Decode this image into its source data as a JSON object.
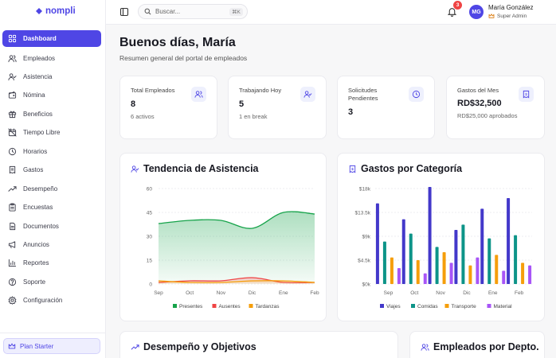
{
  "app": {
    "logo": "nompli"
  },
  "sidebar": {
    "items": [
      {
        "label": "Dashboard",
        "icon": "grid-icon"
      },
      {
        "label": "Empleados",
        "icon": "users-icon"
      },
      {
        "label": "Asistencia",
        "icon": "user-check-icon"
      },
      {
        "label": "Nómina",
        "icon": "wallet-icon"
      },
      {
        "label": "Beneficios",
        "icon": "gift-icon"
      },
      {
        "label": "Tiempo Libre",
        "icon": "calendar-off-icon"
      },
      {
        "label": "Horarios",
        "icon": "clock-icon"
      },
      {
        "label": "Gastos",
        "icon": "receipt-icon"
      },
      {
        "label": "Desempeño",
        "icon": "trending-up-icon"
      },
      {
        "label": "Encuestas",
        "icon": "clipboard-icon"
      },
      {
        "label": "Documentos",
        "icon": "file-icon"
      },
      {
        "label": "Anuncios",
        "icon": "megaphone-icon"
      },
      {
        "label": "Reportes",
        "icon": "bar-chart-icon"
      },
      {
        "label": "Soporte",
        "icon": "help-icon"
      },
      {
        "label": "Configuración",
        "icon": "gear-icon"
      }
    ],
    "plan_label": "Plan Starter"
  },
  "topbar": {
    "search_placeholder": "Buscar...",
    "search_shortcut": "⌘K",
    "notifications_count": "3",
    "avatar_initials": "MG",
    "user_name": "María González",
    "user_role": "Super Admin"
  },
  "header": {
    "greeting": "Buenos días, María",
    "subtitle": "Resumen general del portal de empleados"
  },
  "stats": [
    {
      "label": "Total Empleados",
      "value": "8",
      "sub": "6 activos",
      "icon": "users-icon"
    },
    {
      "label": "Trabajando Hoy",
      "value": "5",
      "sub": "1 en break",
      "icon": "user-check-icon"
    },
    {
      "label": "Solicitudes Pendientes",
      "value": "3",
      "sub": "",
      "icon": "clock-icon"
    },
    {
      "label": "Gastos del Mes",
      "value": "RD$32,500",
      "sub": "RD$25,000 aprobados",
      "icon": "receipt-icon"
    }
  ],
  "cards": {
    "attendance_title": "Tendencia de Asistencia",
    "expenses_title": "Gastos por Categoría",
    "performance_title": "Desempeño y Objetivos",
    "department_title": "Empleados por Depto."
  },
  "chart_data": [
    {
      "type": "area",
      "title": "Tendencia de Asistencia",
      "categories": [
        "Sep",
        "Oct",
        "Nov",
        "Dic",
        "Ene",
        "Feb"
      ],
      "yticks": [
        "0",
        "15",
        "30",
        "45",
        "60"
      ],
      "ylim": [
        0,
        60
      ],
      "series": [
        {
          "name": "Presentes",
          "color": "#16a34a",
          "values": [
            38,
            40,
            40,
            35,
            45,
            44
          ]
        },
        {
          "name": "Ausentes",
          "color": "#ef4444",
          "values": [
            1,
            2,
            2,
            4,
            1,
            1
          ]
        },
        {
          "name": "Tardanzas",
          "color": "#f59e0b",
          "values": [
            2,
            1,
            1,
            2,
            2,
            1
          ]
        }
      ],
      "grid": true,
      "legend": "bottom"
    },
    {
      "type": "bar",
      "title": "Gastos por Categoría",
      "categories": [
        "Sep",
        "Oct",
        "Nov",
        "Dic",
        "Ene",
        "Feb"
      ],
      "yticks": [
        "$0k",
        "$4.5k",
        "$9k",
        "$13.5k",
        "$18k"
      ],
      "ylim": [
        0,
        18000
      ],
      "series": [
        {
          "name": "Viajes",
          "color": "#4338ca",
          "values": [
            15200,
            12200,
            18300,
            10200,
            14200,
            16200
          ]
        },
        {
          "name": "Comidas",
          "color": "#0d9488",
          "values": [
            8000,
            9500,
            7000,
            11200,
            8600,
            9200
          ]
        },
        {
          "name": "Transporte",
          "color": "#f59e0b",
          "values": [
            5000,
            4500,
            6000,
            3500,
            5500,
            4000
          ]
        },
        {
          "name": "Material",
          "color": "#a855f7",
          "values": [
            3000,
            2000,
            4000,
            5000,
            2500,
            3500
          ]
        }
      ],
      "grid": true,
      "legend": "bottom"
    }
  ]
}
